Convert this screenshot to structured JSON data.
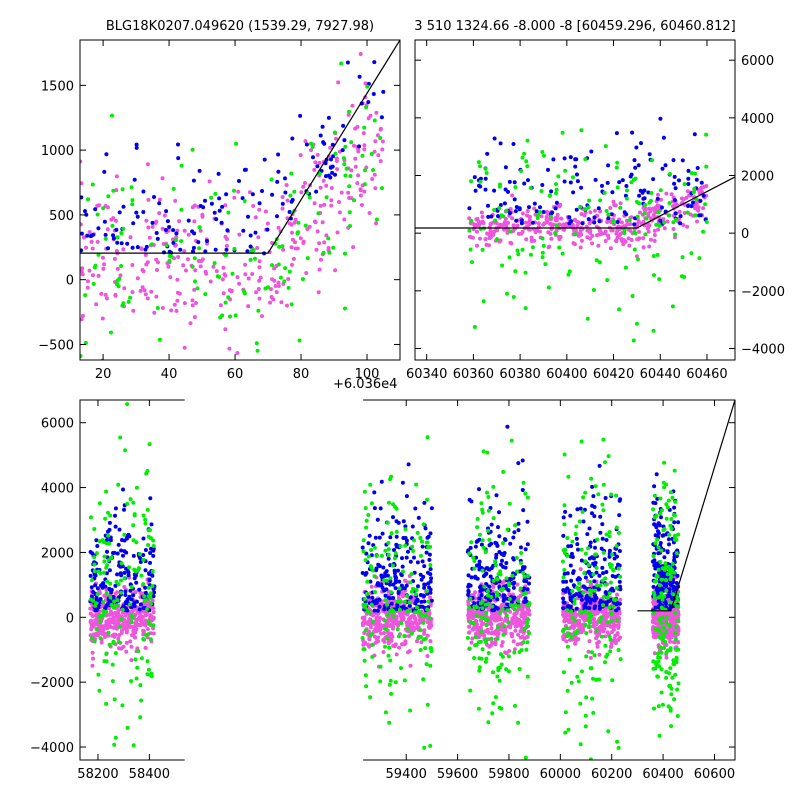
{
  "colors": {
    "blue": "#0000ee",
    "green": "#00ee00",
    "violet": "#ee55dd",
    "line": "#000000"
  },
  "chart_data": [
    {
      "type": "scatter",
      "title": "BLG18K0207.049620 (1539.29, 7927.98)",
      "offset_label": "+6.036e4",
      "xlim": [
        13,
        110
      ],
      "ylim": [
        -620,
        1850
      ],
      "xticks": [
        20,
        40,
        60,
        80,
        100
      ],
      "yticks": [
        -500,
        0,
        500,
        1000,
        1500
      ],
      "model_line": [
        [
          13,
          205
        ],
        [
          70,
          205
        ],
        [
          110,
          1850
        ]
      ]
    },
    {
      "type": "scatter",
      "title": "3 510 1324.66 -8.000 -8 [60459.296, 60460.812]",
      "xlim": [
        60335,
        60472
      ],
      "ylim": [
        -4400,
        6700
      ],
      "xticks": [
        60340,
        60360,
        60380,
        60400,
        60420,
        60440,
        60460
      ],
      "xtick_labels": [
        "60340",
        "60360",
        "60380",
        "60400",
        "60420",
        "60440",
        "60460"
      ],
      "yticks": [
        -4000,
        -2000,
        0,
        2000,
        4000,
        6000
      ],
      "model_line": [
        [
          60335,
          180
        ],
        [
          60430,
          180
        ],
        [
          60472,
          1950
        ]
      ]
    },
    {
      "type": "scatter",
      "title": "",
      "xlim": [
        58130,
        60680
      ],
      "ylim": [
        -4400,
        6700
      ],
      "xticks": [
        58200,
        58400,
        59400,
        59600,
        59800,
        60000,
        60200,
        60400,
        60600
      ],
      "xtick_labels": [
        "58200",
        "58400",
        "59400",
        "59600",
        "59800",
        "60000",
        "60200",
        "60400",
        "60600"
      ],
      "axis_break": {
        "after": 58530,
        "resume": 59240
      },
      "yticks": [
        -4000,
        -2000,
        0,
        2000,
        4000,
        6000
      ],
      "model_line": [
        [
          60300,
          200
        ],
        [
          60430,
          200
        ],
        [
          60680,
          6700
        ]
      ],
      "seasons": [
        [
          58170,
          58420
        ],
        [
          59230,
          59500
        ],
        [
          59640,
          59880
        ],
        [
          60010,
          60235
        ],
        [
          60360,
          60460
        ]
      ]
    }
  ]
}
